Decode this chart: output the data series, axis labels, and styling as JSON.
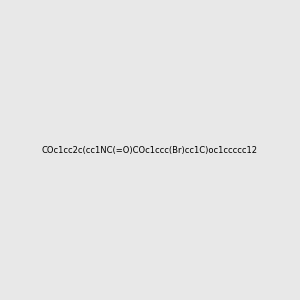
{
  "smiles": "COc1cc2c(cc1NC(=O)COc1ccc(Br)cc1C)oc1ccccc12",
  "image_size": 300,
  "background_color": "#e8e8e8",
  "bond_color": "#000000",
  "atom_colors": {
    "O": "#ff0000",
    "N": "#0000ff",
    "Br": "#cc7722",
    "C": "#000000"
  }
}
